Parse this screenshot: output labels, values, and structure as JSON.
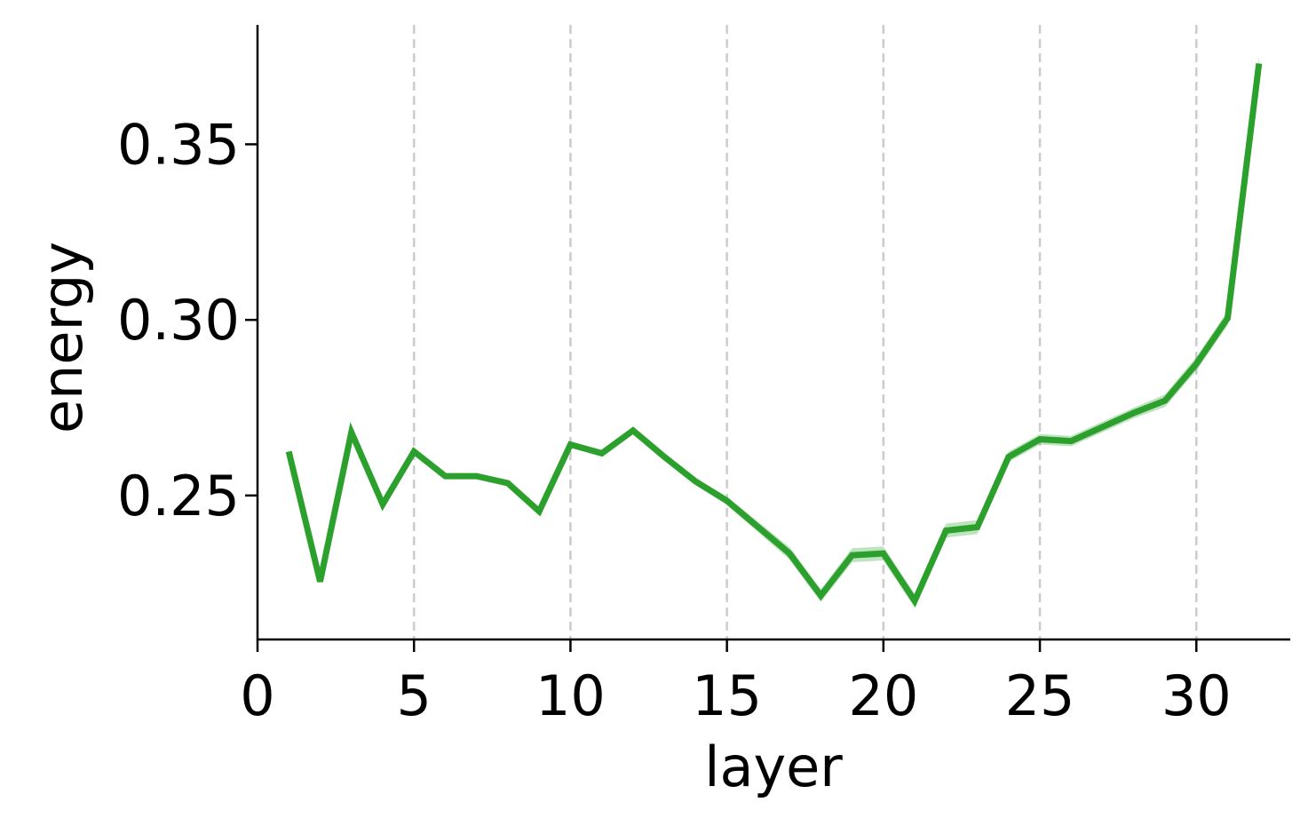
{
  "chart_data": {
    "type": "line",
    "title": "",
    "xlabel": "layer",
    "ylabel": "energy",
    "xlim": [
      0,
      33
    ],
    "ylim": [
      0.209,
      0.384
    ],
    "xticks": [
      0,
      5,
      10,
      15,
      20,
      25,
      30
    ],
    "xtick_labels": [
      "0",
      "5",
      "10",
      "15",
      "20",
      "25",
      "30"
    ],
    "yticks": [
      0.25,
      0.3,
      0.35
    ],
    "ytick_labels": [
      "0.25",
      "0.30",
      "0.35"
    ],
    "grid": "vertical dashed at x ticks",
    "colors": {
      "line": "#2ca02c",
      "band": "#2ca02c",
      "grid": "#cccccc",
      "axis": "#000000"
    },
    "series": [
      {
        "x": [
          1,
          2,
          3,
          4,
          5,
          6,
          7,
          8,
          9,
          10,
          11,
          12,
          13,
          14,
          15,
          16,
          17,
          18,
          19,
          20,
          21,
          22,
          23,
          24,
          25,
          26,
          27,
          28,
          29,
          30,
          31,
          32
        ],
        "values": [
          0.2625,
          0.2255,
          0.268,
          0.2475,
          0.2625,
          0.2555,
          0.2555,
          0.2535,
          0.2455,
          0.2645,
          0.262,
          0.2685,
          0.261,
          0.254,
          0.2485,
          0.241,
          0.2335,
          0.2215,
          0.233,
          0.2335,
          0.22,
          0.24,
          0.241,
          0.261,
          0.266,
          0.2655,
          0.2695,
          0.2735,
          0.277,
          0.2875,
          0.3005,
          0.373
        ],
        "err": [
          0.0003,
          0.0003,
          0.0003,
          0.0003,
          0.0003,
          0.0003,
          0.0003,
          0.0003,
          0.0003,
          0.0004,
          0.0005,
          0.0006,
          0.0008,
          0.001,
          0.0012,
          0.0015,
          0.0018,
          0.0018,
          0.002,
          0.002,
          0.002,
          0.002,
          0.002,
          0.0015,
          0.0015,
          0.0015,
          0.0015,
          0.0015,
          0.0018,
          0.002,
          0.002,
          0.002
        ]
      }
    ]
  }
}
